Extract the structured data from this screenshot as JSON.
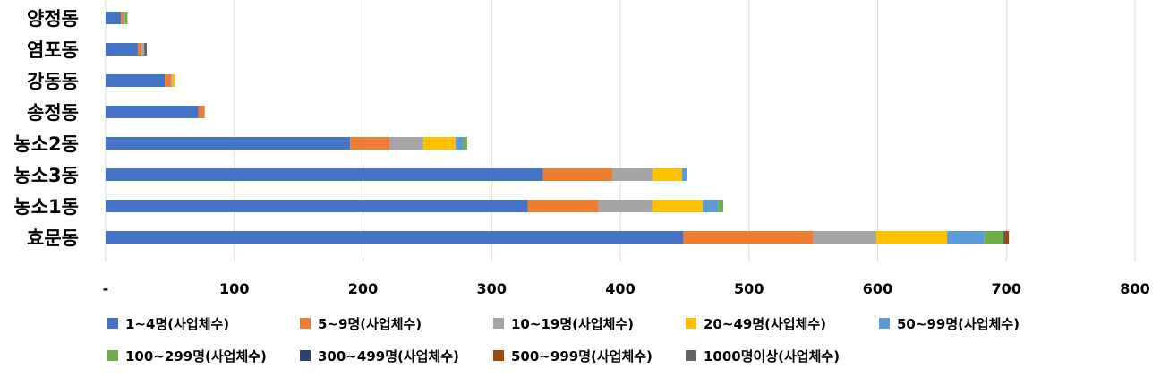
{
  "chart_data": {
    "type": "bar",
    "orientation": "horizontal",
    "stacked": true,
    "categories": [
      "양정동",
      "염포동",
      "강동동",
      "송정동",
      "농소2동",
      "농소3동",
      "농소1동",
      "효문동"
    ],
    "xlim": [
      0,
      800
    ],
    "x_ticks": [
      "-",
      "100",
      "200",
      "300",
      "400",
      "500",
      "600",
      "700",
      "800"
    ],
    "grid": true,
    "legend_position": "bottom",
    "series": [
      {
        "name": "1~4명(사업체수)",
        "color": "#4472C4",
        "values": [
          12,
          25,
          46,
          72,
          190,
          340,
          328,
          449
        ]
      },
      {
        "name": "5~9명(사업체수)",
        "color": "#ED7D31",
        "values": [
          2,
          3,
          5,
          5,
          31,
          54,
          55,
          101
        ]
      },
      {
        "name": "10~19명(사업체수)",
        "color": "#A5A5A5",
        "values": [
          1,
          2,
          1,
          0,
          26,
          31,
          42,
          49
        ]
      },
      {
        "name": "20~49명(사업체수)",
        "color": "#FFC000",
        "values": [
          0,
          0,
          2,
          0,
          25,
          23,
          39,
          55
        ]
      },
      {
        "name": "50~99명(사업체수)",
        "color": "#5B9BD5",
        "values": [
          0,
          0,
          0,
          0,
          6,
          4,
          12,
          29
        ]
      },
      {
        "name": "100~299명(사업체수)",
        "color": "#70AD47",
        "values": [
          2,
          0,
          0,
          0,
          3,
          0,
          4,
          15
        ]
      },
      {
        "name": "300~499명(사업체수)",
        "color": "#264478",
        "values": [
          0,
          0,
          0,
          0,
          0,
          0,
          0,
          1
        ]
      },
      {
        "name": "500~999명(사업체수)",
        "color": "#9E480E",
        "values": [
          0,
          0,
          0,
          0,
          0,
          0,
          0,
          3
        ]
      },
      {
        "name": "1000명이상(사업체수)",
        "color": "#636363",
        "values": [
          0,
          2,
          0,
          0,
          0,
          0,
          0,
          0
        ]
      }
    ]
  }
}
